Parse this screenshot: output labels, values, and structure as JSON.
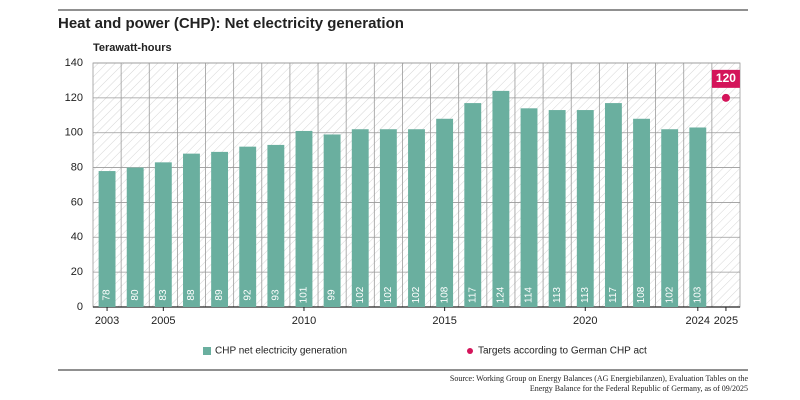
{
  "chart_data": {
    "type": "bar",
    "title": "Heat and power (CHP): Net electricity generation",
    "y_label": "Terawatt-hours",
    "categories": [
      "2003",
      null,
      "2005",
      null,
      null,
      null,
      null,
      "2010",
      null,
      null,
      null,
      null,
      "2015",
      null,
      null,
      null,
      null,
      "2020",
      null,
      null,
      null,
      "2024",
      "2025"
    ],
    "series": [
      {
        "name": "CHP net electricity generation",
        "color": "#6aaf9f",
        "mark": "bar",
        "values": [
          78,
          80,
          83,
          88,
          89,
          92,
          93,
          101,
          99,
          102,
          102,
          102,
          108,
          117,
          124,
          114,
          113,
          113,
          117,
          108,
          102,
          103,
          null
        ]
      },
      {
        "name": "Targets according to German CHP act",
        "color": "#d4145a",
        "mark": "point",
        "values": [
          null,
          null,
          null,
          null,
          null,
          null,
          null,
          null,
          null,
          null,
          null,
          null,
          null,
          null,
          null,
          null,
          null,
          null,
          null,
          null,
          null,
          null,
          120
        ]
      }
    ],
    "ylim": [
      0,
      140
    ],
    "yticks": [
      0,
      20,
      40,
      60,
      80,
      100,
      120,
      140
    ],
    "grid": true,
    "source": [
      "Source: Working Group on Energy Balances (AG Energiebilanzen), Evaluation Tables on the",
      "Energy Balance for the Federal Republic of Germany, as of 09/2025"
    ]
  }
}
